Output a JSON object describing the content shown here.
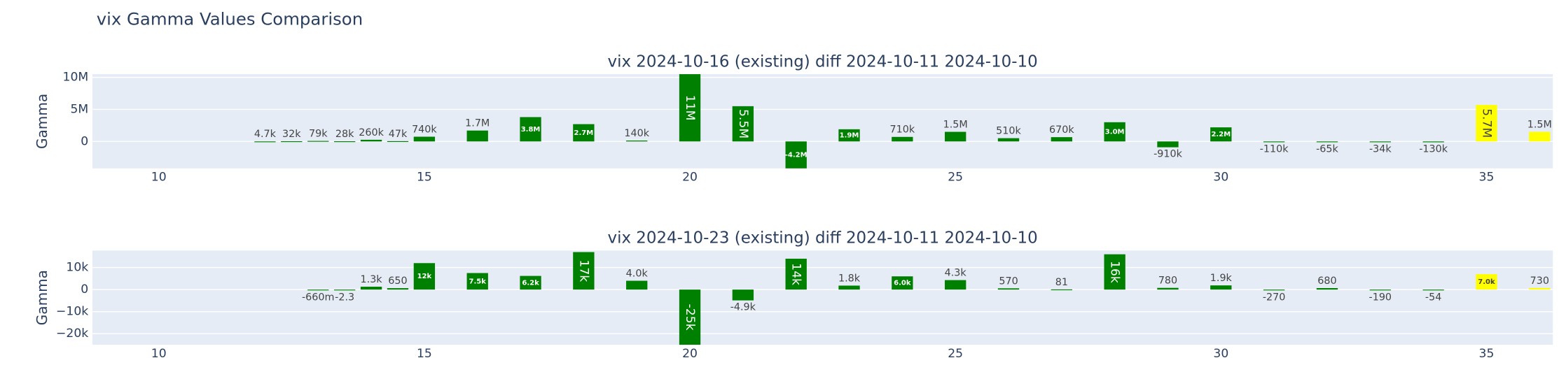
{
  "title": "vix Gamma Values Comparison",
  "chart_data": [
    {
      "type": "bar",
      "title": "vix 2024-10-16 (existing) diff 2024-10-11 2024-10-10",
      "y_label": "Gamma",
      "x": [
        12,
        12.5,
        13,
        13.5,
        14,
        14.5,
        15,
        16,
        17,
        18,
        19,
        20,
        21,
        22,
        23,
        24,
        25,
        26,
        27,
        28,
        29,
        30,
        31,
        32,
        33,
        34,
        35,
        36
      ],
      "values": [
        4700,
        32000,
        79000,
        28000,
        260000,
        47000,
        740000,
        1700000,
        3800000,
        2700000,
        140000,
        11000000,
        5500000,
        -4200000,
        1900000,
        710000,
        1500000,
        510000,
        670000,
        3000000,
        -910000,
        2200000,
        -110000,
        -65000,
        -34000,
        -130000,
        5700000,
        1500000
      ],
      "value_labels": [
        "4.7k",
        "32k",
        "79k",
        "28k",
        "260k",
        "47k",
        "740k",
        "1.7M",
        "3.8M",
        "2.7M",
        "140k",
        "11M",
        "5.5M",
        "-4.2M",
        "1.9M",
        "710k",
        "1.5M",
        "510k",
        "670k",
        "3.0M",
        "-910k",
        "2.2M",
        "-110k",
        "-65k",
        "-34k",
        "-130k",
        "5.7M",
        "1.5M"
      ],
      "colors": [
        "#008000",
        "#008000",
        "#008000",
        "#008000",
        "#008000",
        "#008000",
        "#008000",
        "#008000",
        "#008000",
        "#008000",
        "#008000",
        "#008000",
        "#008000",
        "#008000",
        "#008000",
        "#008000",
        "#008000",
        "#008000",
        "#008000",
        "#008000",
        "#008000",
        "#008000",
        "#008000",
        "#008000",
        "#008000",
        "#008000",
        "#ffff00",
        "#ffff00"
      ],
      "xlim": [
        8.75,
        36.25
      ],
      "xticks": [
        10,
        15,
        20,
        25,
        30,
        35
      ],
      "ylim": [
        -4200000,
        10500000
      ],
      "yticks": [
        {
          "value": 0,
          "label": "0"
        },
        {
          "value": 5000000,
          "label": "5M"
        },
        {
          "value": 10000000,
          "label": "10M"
        }
      ]
    },
    {
      "type": "bar",
      "title": "vix 2024-10-23 (existing) diff 2024-10-11 2024-10-10",
      "y_label": "Gamma",
      "x": [
        13,
        13.5,
        14,
        14.5,
        15,
        16,
        17,
        18,
        19,
        20,
        21,
        22,
        23,
        24,
        25,
        26,
        27,
        28,
        29,
        30,
        31,
        32,
        33,
        34,
        35,
        36
      ],
      "values": [
        -0.66,
        -2.3,
        1300,
        650,
        12000,
        7500,
        6200,
        17000,
        4000,
        -25000,
        -4900,
        14000,
        1800,
        6000,
        4300,
        570,
        81,
        16000,
        780,
        1900,
        -270,
        680,
        -190,
        -54,
        7000,
        730
      ],
      "value_labels": [
        "-660m",
        "-2.3",
        "1.3k",
        "650",
        "12k",
        "7.5k",
        "6.2k",
        "17k",
        "4.0k",
        "-25k",
        "-4.9k",
        "14k",
        "1.8k",
        "6.0k",
        "4.3k",
        "570",
        "81",
        "16k",
        "780",
        "1.9k",
        "-270",
        "680",
        "-190",
        "-54",
        "7.0k",
        "730"
      ],
      "colors": [
        "#008000",
        "#008000",
        "#008000",
        "#008000",
        "#008000",
        "#008000",
        "#008000",
        "#008000",
        "#008000",
        "#008000",
        "#008000",
        "#008000",
        "#008000",
        "#008000",
        "#008000",
        "#008000",
        "#008000",
        "#008000",
        "#008000",
        "#008000",
        "#008000",
        "#008000",
        "#008000",
        "#008000",
        "#ffff00",
        "#ffff00"
      ],
      "xlim": [
        8.75,
        36.25
      ],
      "xticks": [
        10,
        15,
        20,
        25,
        30,
        35
      ],
      "ylim": [
        -25000,
        17700
      ],
      "yticks": [
        {
          "value": -20000,
          "label": "−20k"
        },
        {
          "value": -10000,
          "label": "−10k"
        },
        {
          "value": 0,
          "label": "0"
        },
        {
          "value": 10000,
          "label": "10k"
        }
      ]
    }
  ]
}
